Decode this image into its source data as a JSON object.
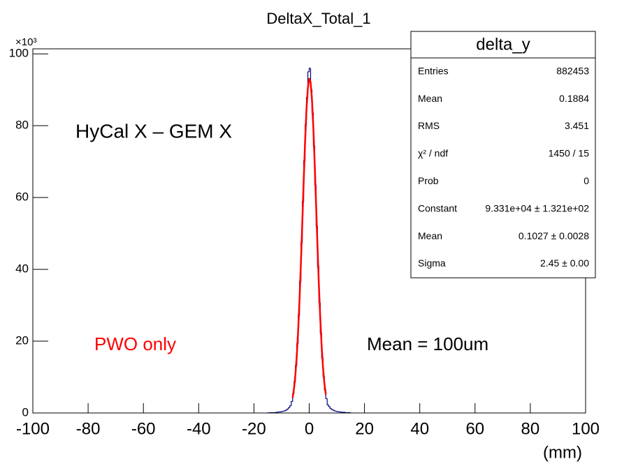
{
  "chart_data": {
    "type": "histogram",
    "title": "DeltaX_Total_1",
    "x_label": "(mm)",
    "y_multiplier": "×10³",
    "xlim": [
      -100,
      100
    ],
    "xticks": [
      -100,
      -80,
      -60,
      -40,
      -20,
      0,
      20,
      40,
      60,
      80,
      100
    ],
    "ylim": [
      0,
      101.4
    ],
    "yticks": [
      0,
      20,
      40,
      60,
      80,
      100
    ],
    "color": "#000080",
    "bins": [
      -15,
      -14.5,
      -14,
      -13.5,
      -13,
      -12.5,
      -12,
      -11.5,
      -11,
      -10.5,
      -10,
      -9.5,
      -9,
      -8.5,
      -8,
      -7.5,
      -7,
      -6.5,
      -6,
      -5.5,
      -5,
      -4.5,
      -4,
      -3.5,
      -3,
      -2.5,
      -2,
      -1.5,
      -1,
      -0.5,
      0,
      0.5,
      1,
      1.5,
      2,
      2.5,
      3,
      3.5,
      4,
      4.5,
      5,
      5.5,
      6,
      6.5,
      7,
      7.5,
      8,
      8.5,
      9,
      9.5,
      10,
      10.5,
      11,
      11.5,
      12,
      12.5,
      13,
      13.5,
      14,
      14.5,
      15
    ],
    "values": [
      0.05,
      0.05,
      0.1,
      0.1,
      0.1,
      0.1,
      0.2,
      0.2,
      0.3,
      0.3,
      0.4,
      0.5,
      0.6,
      0.8,
      1.1,
      1.5,
      2.0,
      3.2,
      5.4,
      8.6,
      13.2,
      19.3,
      27.1,
      36.6,
      47.4,
      58.9,
      70.2,
      80.2,
      87.9,
      95,
      96,
      90.1,
      83.6,
      74.4,
      63.5,
      52.0,
      40.8,
      30.7,
      22.2,
      15.4,
      10.2,
      6.5,
      4.0,
      2.3,
      1.8,
      1.3,
      1.0,
      0.8,
      0.6,
      0.5,
      0.4,
      0.3,
      0.3,
      0.2,
      0.2,
      0.2,
      0.1,
      0.1,
      0.1,
      0.1
    ],
    "fit": {
      "color": "#ff0000",
      "x": [
        -6,
        -5.5,
        -5,
        -4.5,
        -4,
        -3.5,
        -3,
        -2.5,
        -2,
        -1.5,
        -1,
        -0.5,
        0,
        0.5,
        1,
        1.5,
        2,
        2.5,
        3,
        3.5,
        4,
        4.5,
        5,
        5.5,
        6
      ],
      "values": [
        4.2,
        6.8,
        10.7,
        16.0,
        23.0,
        31.7,
        41.9,
        53.1,
        64.6,
        75.4,
        84.4,
        90.5,
        93.2,
        92.1,
        87.2,
        79.3,
        69.1,
        57.7,
        46.3,
        35.6,
        26.3,
        18.6,
        12.6,
        8.2,
        5.1
      ]
    },
    "stats": {
      "title": "delta_y",
      "rows": [
        [
          "Entries",
          "882453"
        ],
        [
          "Mean",
          "0.1884"
        ],
        [
          "RMS",
          "3.451"
        ],
        [
          "χ² / ndf",
          "1450 / 15"
        ],
        [
          "Prob",
          "0"
        ],
        [
          "Constant",
          "9.331e+04 ± 1.321e+02"
        ],
        [
          "Mean",
          "0.1027 ± 0.0028"
        ],
        [
          "Sigma",
          "2.45 ± 0.00"
        ]
      ]
    },
    "annotations": [
      {
        "text": "HyCal X – GEM X",
        "color": "#000000"
      },
      {
        "text": "PWO only",
        "color": "#ff0000"
      },
      {
        "text": "Mean = 100um",
        "color": "#000000"
      }
    ]
  }
}
